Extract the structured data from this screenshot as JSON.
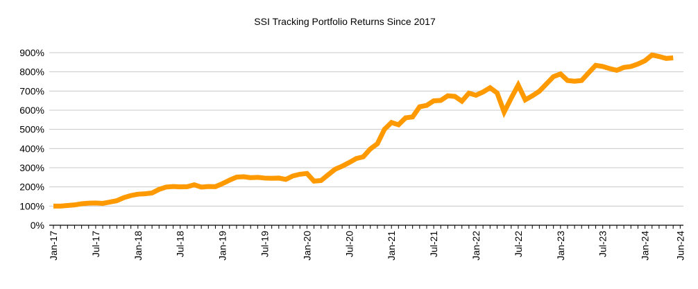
{
  "chart_data": {
    "type": "line",
    "title": "SSI Tracking Portfolio Returns Since 2017",
    "xlabel": "",
    "ylabel": "",
    "ylim": [
      0,
      900
    ],
    "y_ticks": [
      "0%",
      "100%",
      "200%",
      "300%",
      "400%",
      "500%",
      "600%",
      "700%",
      "800%",
      "900%"
    ],
    "x_tick_labels": [
      "Jan-17",
      "Jul-17",
      "Jan-18",
      "Jul-18",
      "Jan-19",
      "Jul-19",
      "Jan-20",
      "Jul-20",
      "Jan-21",
      "Jul-21",
      "Jan-22",
      "Jul-22",
      "Jan-23",
      "Jul-23",
      "Jan-24",
      "Jun-24"
    ],
    "xlim": [
      "Jan-17",
      "Jun-24"
    ],
    "grid": "horizontal",
    "line_color": "#FF9900",
    "x": [
      "Jan-17",
      "Feb-17",
      "Mar-17",
      "Apr-17",
      "May-17",
      "Jun-17",
      "Jul-17",
      "Aug-17",
      "Sep-17",
      "Oct-17",
      "Nov-17",
      "Dec-17",
      "Jan-18",
      "Feb-18",
      "Mar-18",
      "Apr-18",
      "May-18",
      "Jun-18",
      "Jul-18",
      "Aug-18",
      "Sep-18",
      "Oct-18",
      "Nov-18",
      "Dec-18",
      "Jan-19",
      "Feb-19",
      "Mar-19",
      "Apr-19",
      "May-19",
      "Jun-19",
      "Jul-19",
      "Aug-19",
      "Sep-19",
      "Oct-19",
      "Nov-19",
      "Dec-19",
      "Jan-20",
      "Feb-20",
      "Mar-20",
      "Apr-20",
      "May-20",
      "Jun-20",
      "Jul-20",
      "Aug-20",
      "Sep-20",
      "Oct-20",
      "Nov-20",
      "Dec-20",
      "Jan-21",
      "Feb-21",
      "Mar-21",
      "Apr-21",
      "May-21",
      "Jun-21",
      "Jul-21",
      "Aug-21",
      "Sep-21",
      "Oct-21",
      "Nov-21",
      "Dec-21",
      "Jan-22",
      "Feb-22",
      "Mar-22",
      "Apr-22",
      "May-22",
      "Jun-22",
      "Jul-22",
      "Aug-22",
      "Sep-22",
      "Oct-22",
      "Nov-22",
      "Dec-22",
      "Jan-23",
      "Feb-23",
      "Mar-23",
      "Apr-23",
      "May-23",
      "Jun-23",
      "Jul-23",
      "Aug-23",
      "Sep-23",
      "Oct-23",
      "Nov-23",
      "Dec-23",
      "Jan-24",
      "Feb-24",
      "Mar-24",
      "Apr-24",
      "May-24"
    ],
    "values": [
      100,
      100,
      103,
      106,
      112,
      115,
      116,
      114,
      121,
      128,
      144,
      155,
      162,
      164,
      168,
      187,
      199,
      202,
      200,
      201,
      211,
      199,
      202,
      201,
      217,
      235,
      251,
      253,
      248,
      250,
      246,
      245,
      246,
      239,
      257,
      266,
      270,
      230,
      233,
      263,
      292,
      308,
      327,
      348,
      357,
      398,
      425,
      500,
      536,
      524,
      560,
      565,
      618,
      625,
      649,
      651,
      675,
      672,
      647,
      689,
      678,
      695,
      717,
      690,
      590,
      663,
      731,
      654,
      675,
      699,
      737,
      775,
      789,
      755,
      751,
      755,
      795,
      834,
      828,
      817,
      808,
      823,
      828,
      841,
      858,
      888,
      880,
      870,
      873
    ]
  }
}
